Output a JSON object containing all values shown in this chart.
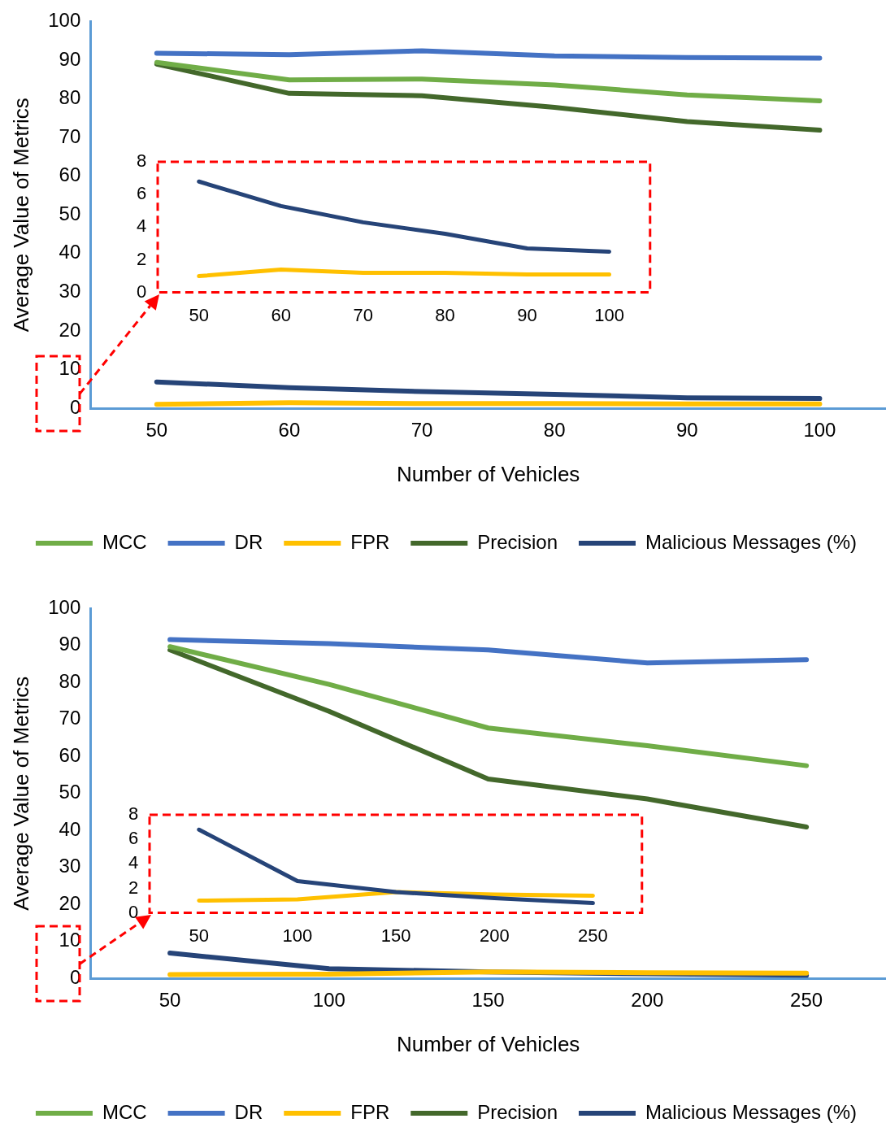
{
  "chart_data": [
    {
      "type": "line",
      "xlabel": "Number of Vehicles",
      "ylabel": "Average Value of Metrics",
      "categories": [
        "50",
        "60",
        "70",
        "80",
        "90",
        "100"
      ],
      "ylim": [
        0,
        100
      ],
      "yticks": [
        0,
        10,
        20,
        30,
        40,
        50,
        60,
        70,
        80,
        90,
        100
      ],
      "grid": false,
      "legend": "bottom",
      "marker": "none",
      "line_style": "solid",
      "series": [
        {
          "name": "MCC",
          "color": "#70ad47",
          "values": [
            89.4,
            84.9,
            85.1,
            83.6,
            81.0,
            79.5
          ]
        },
        {
          "name": "DR",
          "color": "#4472c4",
          "values": [
            91.8,
            91.4,
            92.4,
            91.1,
            90.7,
            90.5
          ]
        },
        {
          "name": "FPR",
          "color": "#ffc000",
          "values": [
            1.0,
            1.4,
            1.2,
            1.2,
            1.1,
            1.1
          ]
        },
        {
          "name": "Precision",
          "color": "#43682b",
          "values": [
            89.0,
            81.4,
            80.8,
            77.8,
            74.1,
            71.9
          ]
        },
        {
          "name": "Malicious Messages (%)",
          "color": "#264478",
          "values": [
            6.8,
            5.3,
            4.3,
            3.6,
            2.7,
            2.5
          ]
        }
      ]
    },
    {
      "type": "line",
      "categories": [
        "50",
        "60",
        "70",
        "80",
        "90",
        "100"
      ],
      "ylim": [
        0,
        8
      ],
      "yticks": [
        0,
        2,
        4,
        6,
        8
      ],
      "grid": false,
      "legend": false,
      "marker": "none",
      "line_style": "solid",
      "series": [
        {
          "color": "#264478",
          "values": [
            6.8,
            5.3,
            4.3,
            3.6,
            2.7,
            2.5
          ]
        },
        {
          "color": "#ffc000",
          "values": [
            1.0,
            1.4,
            1.2,
            1.2,
            1.1,
            1.1
          ]
        }
      ]
    },
    {
      "type": "line",
      "xlabel": "Number of Vehicles",
      "ylabel": "Average Value of Metrics",
      "categories": [
        "50",
        "100",
        "150",
        "200",
        "250"
      ],
      "ylim": [
        0,
        100
      ],
      "yticks": [
        0,
        10,
        20,
        30,
        40,
        50,
        60,
        70,
        80,
        90,
        100
      ],
      "grid": false,
      "legend": "bottom",
      "marker": "none",
      "line_style": "solid",
      "series": [
        {
          "name": "MCC",
          "color": "#70ad47",
          "values": [
            89.7,
            79.5,
            67.7,
            62.9,
            57.5
          ]
        },
        {
          "name": "DR",
          "color": "#4472c4",
          "values": [
            91.6,
            90.5,
            88.8,
            85.3,
            86.2
          ]
        },
        {
          "name": "FPR",
          "color": "#ffc000",
          "values": [
            1.0,
            1.1,
            1.7,
            1.5,
            1.4
          ]
        },
        {
          "name": "Precision",
          "color": "#43682b",
          "values": [
            88.8,
            72.2,
            53.9,
            48.5,
            40.9
          ]
        },
        {
          "name": "Malicious Messages (%)",
          "color": "#264478",
          "values": [
            6.8,
            2.6,
            1.7,
            1.2,
            0.8
          ]
        }
      ]
    },
    {
      "type": "line",
      "categories": [
        "50",
        "100",
        "150",
        "200",
        "250"
      ],
      "ylim": [
        0,
        8
      ],
      "yticks": [
        0,
        2,
        4,
        6,
        8
      ],
      "grid": false,
      "legend": false,
      "marker": "none",
      "line_style": "solid",
      "series": [
        {
          "color": "#264478",
          "values": [
            6.8,
            2.6,
            1.7,
            1.2,
            0.8
          ]
        },
        {
          "color": "#ffc000",
          "values": [
            1.0,
            1.1,
            1.7,
            1.5,
            1.4
          ]
        }
      ]
    }
  ]
}
